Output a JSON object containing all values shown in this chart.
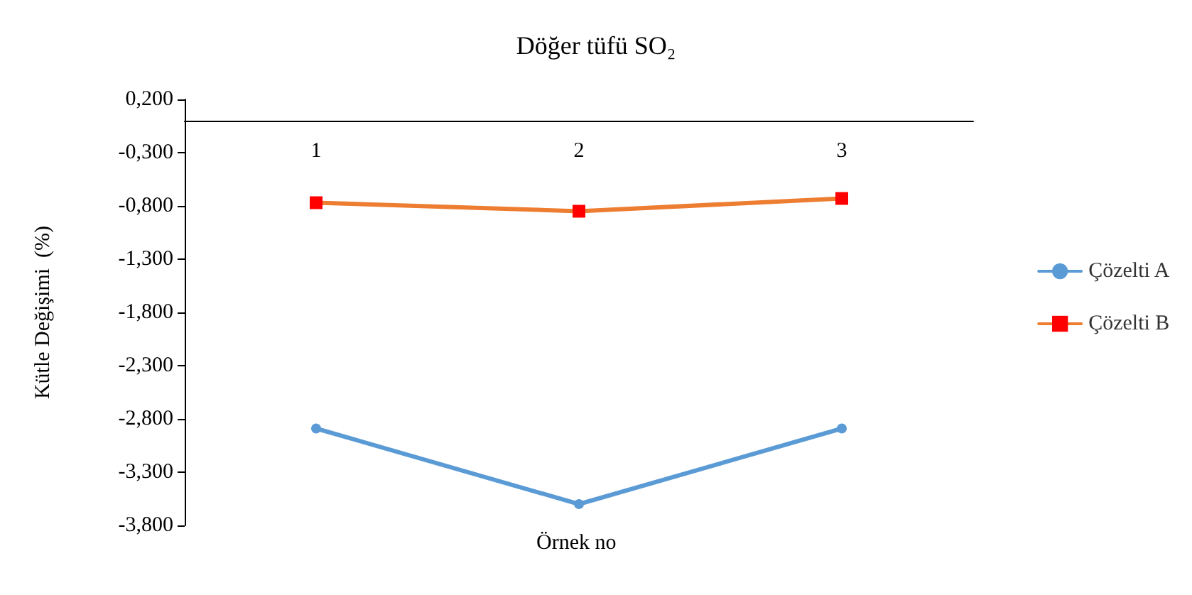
{
  "chart_data": {
    "type": "line",
    "title": "Döğer tüfü SO₂",
    "xlabel": "Örnek no",
    "ylabel": "Kütle Değişimi  (%)",
    "categories": [
      "1",
      "2",
      "3"
    ],
    "series": [
      {
        "name": "Çözelti A",
        "color": "#5b9bd5",
        "values": [
          -2.89,
          -3.6,
          -2.89
        ],
        "marker": "circle"
      },
      {
        "name": "Çözelti B",
        "color": "#ed7d31",
        "values": [
          -0.77,
          -0.85,
          -0.73
        ],
        "marker": "square"
      }
    ],
    "ylim": [
      -3.8,
      0.2
    ],
    "yticks": [
      {
        "value": 0.2,
        "label": "0,200"
      },
      {
        "value": -0.3,
        "label": "-0,300"
      },
      {
        "value": -0.8,
        "label": "-0,800"
      },
      {
        "value": -1.3,
        "label": "-1,300"
      },
      {
        "value": -1.8,
        "label": "-1,800"
      },
      {
        "value": -2.3,
        "label": "-2,300"
      },
      {
        "value": -2.8,
        "label": "-2,800"
      },
      {
        "value": -3.3,
        "label": "-3,300"
      },
      {
        "value": -3.8,
        "label": "-3,800"
      }
    ],
    "grid": false,
    "legend": "right"
  }
}
